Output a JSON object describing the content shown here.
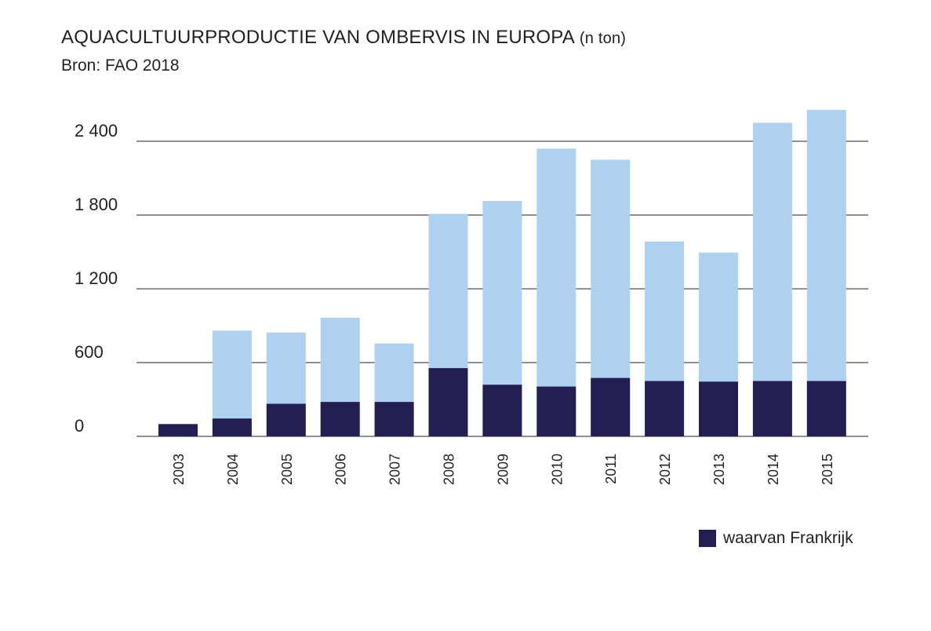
{
  "header": {
    "title": "AQUACULTUURPRODUCTIE VAN OMBERVIS IN EUROPA",
    "unit": "(n ton)",
    "source": "Bron: FAO 2018"
  },
  "colors": {
    "total": "#aed1ef",
    "france": "#231f52",
    "grid": "#231f20",
    "text": "#231f20"
  },
  "chart_data": {
    "type": "bar",
    "stacked": false,
    "overlap": true,
    "categories": [
      "2003",
      "2004",
      "2005",
      "2006",
      "2007",
      "2008",
      "2009",
      "2010",
      "2011",
      "2012",
      "2013",
      "2014",
      "2015"
    ],
    "series": [
      {
        "name": "",
        "role": "total",
        "values": [
          100,
          860,
          845,
          965,
          755,
          1810,
          1915,
          2340,
          2250,
          1585,
          1495,
          2550,
          2655
        ]
      },
      {
        "name": "waarvan Frankrijk",
        "role": "france",
        "values": [
          100,
          145,
          265,
          280,
          280,
          555,
          420,
          405,
          475,
          450,
          445,
          450,
          450
        ]
      }
    ],
    "yticks": [
      0,
      600,
      1200,
      1800,
      2400
    ],
    "ytick_labels": [
      "0",
      "600",
      "1 200",
      "1 800",
      "2 400"
    ],
    "ylim": [
      0,
      2700
    ],
    "grid": true,
    "xlabel": "",
    "ylabel": "",
    "legend": {
      "label": "waarvan Frankrijk",
      "position": "bottom-right"
    }
  }
}
